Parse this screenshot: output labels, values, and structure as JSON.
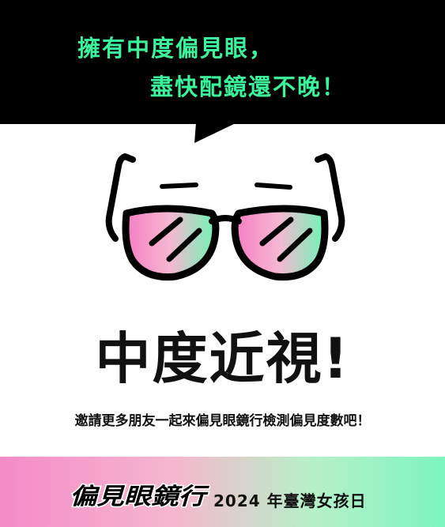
{
  "speech_bubble": {
    "line1": "擁有中度偏見眼，",
    "line2": "盡快配鏡還不晚！",
    "text_color": "#3CF29A",
    "background": "#000000"
  },
  "glasses_icon": "sunglasses-icon",
  "headline": "中度近視!",
  "invitation": "邀請更多朋友一起來偏見眼鏡行檢測偏見度數吧！",
  "footer": {
    "logo_text": "偏見眼鏡行",
    "event": "2024 年臺灣女孩日",
    "gradient": [
      "#F58BC8",
      "#7DF5BF"
    ]
  }
}
